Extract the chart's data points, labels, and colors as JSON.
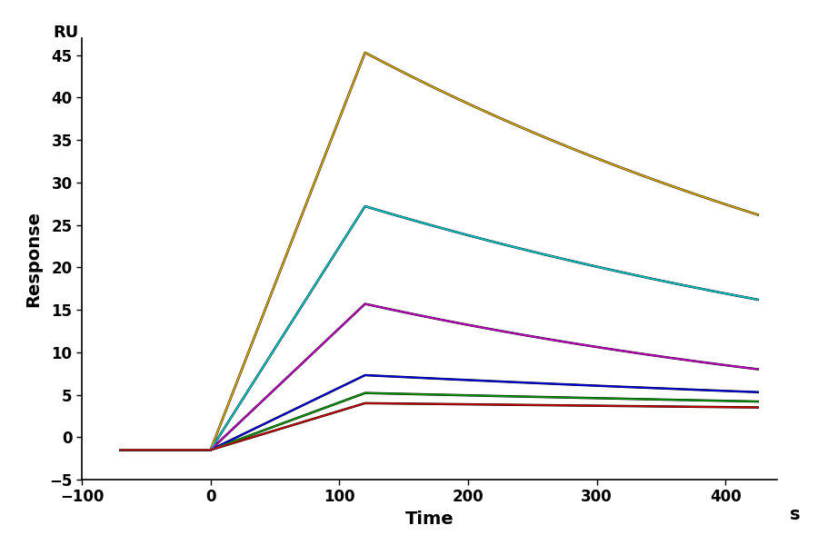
{
  "xlabel": "Time",
  "ylabel": "Response",
  "xlabel_unit": "s",
  "ylabel_unit": "RU",
  "xlim": [
    -100,
    440
  ],
  "ylim": [
    -5,
    47
  ],
  "xticks": [
    -100,
    0,
    100,
    200,
    300,
    400
  ],
  "yticks": [
    -5,
    0,
    5,
    10,
    15,
    20,
    25,
    30,
    35,
    40,
    45
  ],
  "baseline_start": -70,
  "baseline_end": 0,
  "assoc_end": 120,
  "dissoc_end": 425,
  "baseline_val": -1.5,
  "curves": [
    {
      "color": "#ddaa00",
      "peak": 45.3,
      "dissoc_end_val": 26.2
    },
    {
      "color": "#00cccc",
      "peak": 27.2,
      "dissoc_end_val": 16.2
    },
    {
      "color": "#cc00cc",
      "peak": 15.7,
      "dissoc_end_val": 8.0
    },
    {
      "color": "#0000ee",
      "peak": 7.3,
      "dissoc_end_val": 5.3
    },
    {
      "color": "#009900",
      "peak": 5.2,
      "dissoc_end_val": 4.2
    },
    {
      "color": "#cc0000",
      "peak": 4.0,
      "dissoc_end_val": 3.5
    }
  ],
  "background_color": "#ffffff",
  "fit_color": "#000000",
  "fit_linewidth": 1.8,
  "data_linewidth": 1.2,
  "label_fontsize": 14,
  "tick_fontsize": 12,
  "ru_fontsize": 13
}
